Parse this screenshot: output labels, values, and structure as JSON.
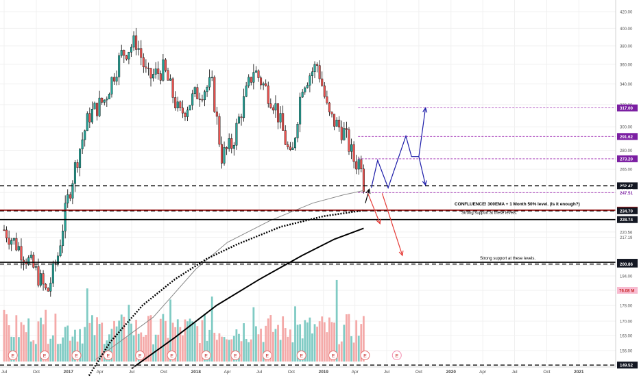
{
  "chart_data": {
    "type": "candlestick",
    "price_scale": {
      "type": "log",
      "ticks": [
        149.52,
        156.0,
        163.0,
        170.0,
        178.0,
        186.0,
        194.0,
        200.86,
        201.92,
        217.19,
        220.56,
        228.74,
        234.45,
        234.7,
        235.14,
        247.51,
        249.17,
        252.47,
        265.0,
        273.2,
        280.0,
        291.62,
        300.0,
        317.0,
        320.0,
        340.0,
        360.0,
        380.0,
        400.0,
        420.0
      ],
      "minor_ticks": [
        "149.52",
        "156.00",
        "163.00",
        "170.00",
        "178.00",
        "186.00",
        "194.00",
        "200.00",
        "217.19",
        "220.56",
        "234.45",
        "247.51",
        "265.00",
        "280.00",
        "300.00",
        "320.00",
        "340.00",
        "360.00",
        "380.00",
        "400.00",
        "420.00"
      ],
      "badges": [
        {
          "label": "252.47",
          "value": 252.47,
          "style": "dark"
        },
        {
          "label": "249.17",
          "value": 249.17,
          "style": "dark"
        },
        {
          "label": "235.14",
          "value": 235.14,
          "style": "red"
        },
        {
          "label": "234.70",
          "value": 234.7,
          "style": "dark"
        },
        {
          "label": "228.74",
          "value": 228.74,
          "style": "dark"
        },
        {
          "label": "201.92",
          "value": 201.92,
          "style": "dark"
        },
        {
          "label": "200.86",
          "value": 200.86,
          "style": "dark"
        },
        {
          "label": "149.52",
          "value": 149.52,
          "style": "dark"
        },
        {
          "label": "317.00",
          "value": 317,
          "style": "purple"
        },
        {
          "label": "291.62",
          "value": 291.62,
          "style": "purple"
        },
        {
          "label": "273.20",
          "value": 273.2,
          "style": "purple"
        },
        {
          "label": "247.51",
          "value": 247.51,
          "style": "purple-text"
        }
      ],
      "volume_badge": {
        "label": "76.08 M",
        "style": "volume"
      }
    },
    "time_axis": {
      "labels": [
        "Jul",
        "Oct",
        "2017",
        "Apr",
        "Jul",
        "Oct",
        "2018",
        "Apr",
        "Jul",
        "Oct",
        "2019",
        "Apr",
        "Jul",
        "Oct",
        "2020",
        "Apr",
        "Jul",
        "Oct",
        "2021"
      ],
      "start": "2016-07",
      "end": "2021-01"
    },
    "series": [
      {
        "kind": "candles",
        "interval": "weekly",
        "colors": {
          "up": "#26a69a",
          "down": "#ef5350",
          "wick": "#000000"
        },
        "anchors": [
          {
            "date": "2016-07-01",
            "close": 222
          },
          {
            "date": "2016-08-15",
            "close": 210
          },
          {
            "date": "2016-10-01",
            "close": 196
          },
          {
            "date": "2016-11-01",
            "close": 184
          },
          {
            "date": "2016-12-01",
            "close": 205
          },
          {
            "date": "2017-01-01",
            "close": 245
          },
          {
            "date": "2017-02-01",
            "close": 280
          },
          {
            "date": "2017-03-01",
            "close": 310
          },
          {
            "date": "2017-04-15",
            "close": 325
          },
          {
            "date": "2017-06-01",
            "close": 370
          },
          {
            "date": "2017-07-15",
            "close": 385
          },
          {
            "date": "2017-08-15",
            "close": 345
          },
          {
            "date": "2017-10-01",
            "close": 355
          },
          {
            "date": "2017-11-15",
            "close": 310
          },
          {
            "date": "2018-01-01",
            "close": 330
          },
          {
            "date": "2018-02-15",
            "close": 340
          },
          {
            "date": "2018-03-15",
            "close": 275
          },
          {
            "date": "2018-04-15",
            "close": 285
          },
          {
            "date": "2018-06-15",
            "close": 355
          },
          {
            "date": "2018-08-15",
            "close": 320
          },
          {
            "date": "2018-10-01",
            "close": 270
          },
          {
            "date": "2018-11-01",
            "close": 340
          },
          {
            "date": "2018-12-15",
            "close": 360
          },
          {
            "date": "2019-01-15",
            "close": 310
          },
          {
            "date": "2019-03-01",
            "close": 295
          },
          {
            "date": "2019-04-01",
            "close": 270
          },
          {
            "date": "2019-04-20",
            "close": 272
          },
          {
            "date": "2019-05-01",
            "close": 240
          }
        ]
      },
      {
        "kind": "ema",
        "label": "300EMA",
        "style": "dotted",
        "color": "#000000"
      },
      {
        "kind": "ma-thin",
        "color": "#888888"
      },
      {
        "kind": "ma-thick",
        "color": "#000000"
      },
      {
        "kind": "volume",
        "colors": {
          "up": "#80cbc4",
          "down": "#f4a9a8"
        }
      }
    ],
    "horizontal_levels": [
      {
        "value": 252.47,
        "style": "dashed",
        "color": "#000000"
      },
      {
        "value": 234.7,
        "style": "dashed",
        "color": "#000000"
      },
      {
        "value": 235.14,
        "style": "solid",
        "color": "#8b0000"
      },
      {
        "value": 228.74,
        "style": "solid",
        "color": "#000000"
      },
      {
        "value": 201.92,
        "style": "solid",
        "color": "#000000"
      },
      {
        "value": 200.86,
        "style": "dashed",
        "color": "#000000"
      },
      {
        "value": 149.52,
        "style": "dashed",
        "color": "#000000"
      },
      {
        "value": 317,
        "style": "dashed",
        "color": "#9c27b0"
      },
      {
        "value": 291.62,
        "style": "dashed",
        "color": "#9c27b0"
      },
      {
        "value": 273.2,
        "style": "dashed",
        "color": "#9c27b0"
      },
      {
        "value": 247.51,
        "style": "dashed",
        "color": "#9c27b0"
      }
    ],
    "annotations": [
      {
        "text": "CONFLUENCE! 300EMA + 1 Month 50% level. (Is it enough?)",
        "bold": true
      },
      {
        "text": "Strong support at these levels."
      },
      {
        "text": "Strong support at these levels."
      }
    ],
    "earnings_markers": {
      "label": "E",
      "count": 13
    },
    "projections": {
      "bullish_color": "#1a1aa8",
      "bearish_color": "#e53935",
      "current_color": "#000000"
    },
    "grid": true
  }
}
